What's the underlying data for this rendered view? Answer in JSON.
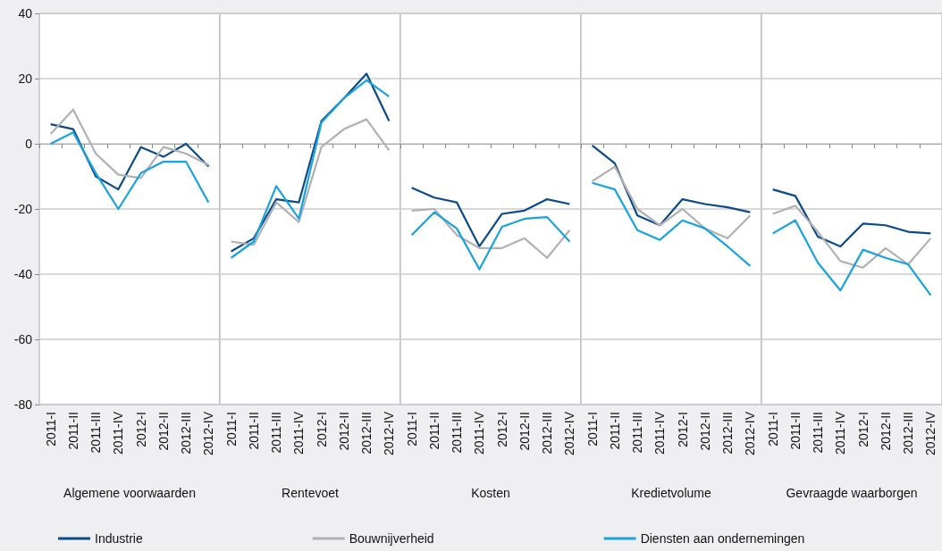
{
  "chart_data": [
    {
      "type": "line",
      "xlabel": "Algemene voorwaarden",
      "categories": [
        "2011-I",
        "2011-II",
        "2011-III",
        "2011-IV",
        "2012-I",
        "2012-II",
        "2012-III",
        "2012-IV"
      ],
      "ylim": [
        -80,
        40
      ],
      "yticks": [
        -80,
        -60,
        -40,
        -20,
        0,
        20,
        40
      ],
      "grid": "y",
      "marker": "none",
      "line_style": "solid",
      "legend": "bottom",
      "series": [
        {
          "name": "Industrie",
          "color": "#0a4a8a",
          "values": [
            6,
            4.5,
            -10,
            -14,
            -1,
            -4,
            0,
            -7
          ]
        },
        {
          "name": "Bouwnijverheid",
          "color": "#b1b1b3",
          "values": [
            3,
            10.5,
            -3,
            -9.5,
            -10.5,
            -1,
            -3,
            -6.5
          ]
        },
        {
          "name": "Diensten aan ondernemingen",
          "color": "#18a3e0",
          "values": [
            0,
            3.5,
            -9,
            -20,
            -9,
            -5.5,
            -5.5,
            -18
          ]
        }
      ]
    },
    {
      "type": "line",
      "xlabel": "Rentevoet",
      "categories": [
        "2011-I",
        "2011-II",
        "2011-III",
        "2011-IV",
        "2012-I",
        "2012-II",
        "2012-III",
        "2012-IV"
      ],
      "ylim": [
        -80,
        40
      ],
      "yticks": [
        -80,
        -60,
        -40,
        -20,
        0,
        20,
        40
      ],
      "grid": "y",
      "marker": "none",
      "line_style": "solid",
      "tick_labels": "x",
      "series": [
        {
          "name": "Industrie",
          "color": "#0a4a8a",
          "values": [
            -33,
            -29,
            -17,
            -18,
            7,
            14,
            21.5,
            7
          ]
        },
        {
          "name": "Bouwnijverheid",
          "color": "#b1b1b3",
          "values": [
            -30,
            -31,
            -18,
            -24,
            -1,
            4.5,
            7.5,
            -2
          ]
        },
        {
          "name": "Diensten aan ondernemingen",
          "color": "#18a3e0",
          "values": [
            -35,
            -30,
            -13,
            -23,
            6.5,
            14,
            19.5,
            14.5
          ]
        }
      ]
    },
    {
      "type": "line",
      "xlabel": "Kosten",
      "categories": [
        "2011-I",
        "2011-II",
        "2011-III",
        "2011-IV",
        "2012-I",
        "2012-II",
        "2012-III",
        "2012-IV"
      ],
      "ylim": [
        -80,
        40
      ],
      "yticks": [
        -80,
        -60,
        -40,
        -20,
        0,
        20,
        40
      ],
      "grid": "y",
      "marker": "none",
      "line_style": "solid",
      "tick_labels": "x",
      "series": [
        {
          "name": "Industrie",
          "color": "#0a4a8a",
          "values": [
            -13.5,
            -16.5,
            -18,
            -31.5,
            -21.5,
            -20.5,
            -17,
            -18.5
          ]
        },
        {
          "name": "Bouwnijverheid",
          "color": "#b1b1b3",
          "values": [
            -20.5,
            -20,
            -28,
            -32,
            -32,
            -29,
            -35,
            -26.5
          ]
        },
        {
          "name": "Diensten aan ondernemingen",
          "color": "#18a3e0",
          "values": [
            -28,
            -21,
            -26,
            -38.5,
            -25.5,
            -23,
            -22.5,
            -30
          ]
        }
      ]
    },
    {
      "type": "line",
      "xlabel": "Kredietvolume",
      "categories": [
        "2011-I",
        "2011-II",
        "2011-III",
        "2011-IV",
        "2012-I",
        "2012-II",
        "2012-III",
        "2012-IV"
      ],
      "ylim": [
        -80,
        40
      ],
      "yticks": [
        -80,
        -60,
        -40,
        -20,
        0,
        20,
        40
      ],
      "grid": "y",
      "marker": "none",
      "line_style": "solid",
      "tick_labels": "x",
      "series": [
        {
          "name": "Industrie",
          "color": "#0a4a8a",
          "values": [
            -0.5,
            -6,
            -22,
            -25,
            -17,
            -18.5,
            -19.5,
            -21
          ]
        },
        {
          "name": "Bouwnijverheid",
          "color": "#b1b1b3",
          "values": [
            -11.5,
            -7,
            -20,
            -25,
            -20,
            -26,
            -29,
            -22
          ]
        },
        {
          "name": "Diensten aan ondernemingen",
          "color": "#18a3e0",
          "values": [
            -12,
            -14,
            -26.5,
            -29.5,
            -23.5,
            -26,
            -31.5,
            -37.5
          ]
        }
      ]
    },
    {
      "type": "line",
      "xlabel": "Gevraagde waarborgen",
      "categories": [
        "2011-I",
        "2011-II",
        "2011-III",
        "2011-IV",
        "2012-I",
        "2012-II",
        "2012-III",
        "2012-IV"
      ],
      "ylim": [
        -80,
        40
      ],
      "yticks": [
        -80,
        -60,
        -40,
        -20,
        0,
        20,
        40
      ],
      "grid": "y",
      "marker": "none",
      "line_style": "solid",
      "tick_labels": "x",
      "series": [
        {
          "name": "Industrie",
          "color": "#0a4a8a",
          "values": [
            -14,
            -16,
            -28.5,
            -31.5,
            -24.5,
            -25,
            -27,
            -27.5
          ]
        },
        {
          "name": "Bouwnijverheid",
          "color": "#b1b1b3",
          "values": [
            -21.5,
            -19,
            -27,
            -36,
            -38,
            -32,
            -37,
            -29
          ]
        },
        {
          "name": "Diensten aan ondernemingen",
          "color": "#18a3e0",
          "values": [
            -27.5,
            -23.5,
            -36.5,
            -45,
            -32.5,
            -35,
            -37,
            -46.5
          ]
        }
      ]
    }
  ]
}
